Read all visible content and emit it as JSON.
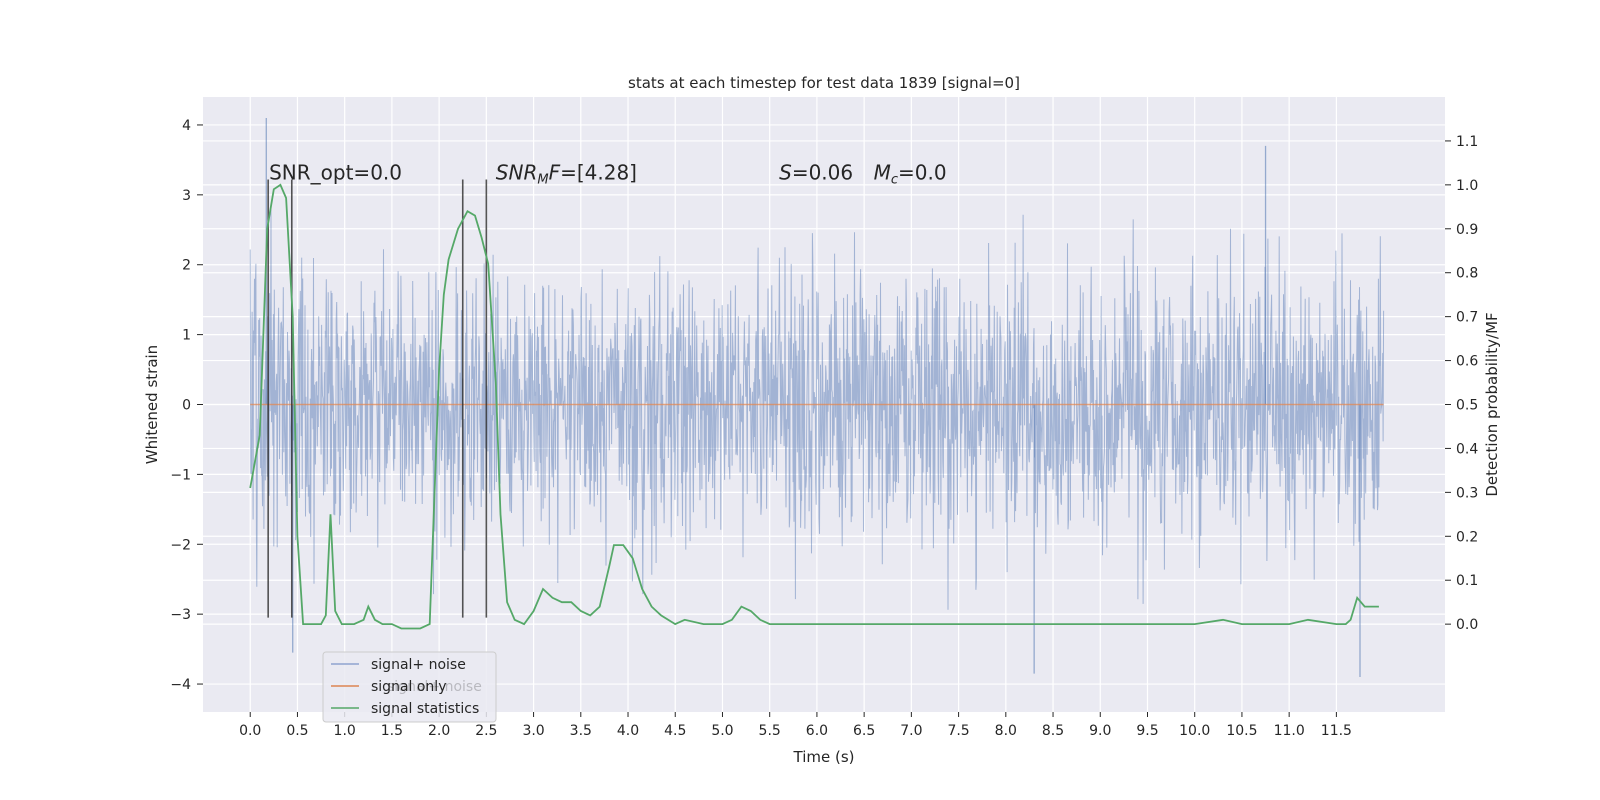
{
  "chart_data": {
    "type": "line",
    "title": "stats at each timestep for test data 1839 [signal=0]",
    "xlabel": "Time (s)",
    "ylabel": "Whitened strain",
    "ylabel_right": "Detection probability/MF",
    "xlim": [
      -0.5,
      12.65
    ],
    "ylim": [
      -4.4,
      4.4
    ],
    "ylim_right": [
      -0.2,
      1.2
    ],
    "x_ticks": [
      0.0,
      0.5,
      1.0,
      1.5,
      2.0,
      2.5,
      3.0,
      3.5,
      4.0,
      4.5,
      5.0,
      5.5,
      6.0,
      6.5,
      7.0,
      7.5,
      8.0,
      8.5,
      9.0,
      9.5,
      10.0,
      10.5,
      11.0,
      11.5
    ],
    "x_tick_labels": [
      "0.0",
      "0.5",
      "1.0",
      "1.5",
      "2.0",
      "2.5",
      "3.0",
      "3.5",
      "4.0",
      "4.5",
      "5.0",
      "5.5",
      "6.0",
      "6.5",
      "7.0",
      "7.5",
      "8.0",
      "8.5",
      "9.0",
      "9.5",
      "10.0",
      "10.5",
      "11.0",
      "11.5"
    ],
    "y_ticks": [
      -4,
      -3,
      -2,
      -1,
      0,
      1,
      2,
      3,
      4
    ],
    "y_tick_labels": [
      "−4",
      "−3",
      "−2",
      "−1",
      "0",
      "1",
      "2",
      "3",
      "4"
    ],
    "y_right_ticks": [
      0.0,
      0.1,
      0.2,
      0.3,
      0.4,
      0.5,
      0.6,
      0.7,
      0.8,
      0.9,
      1.0,
      1.1
    ],
    "y_right_tick_labels": [
      "0.0",
      "0.1",
      "0.2",
      "0.3",
      "0.4",
      "0.5",
      "0.6",
      "0.7",
      "0.8",
      "0.9",
      "1.0",
      "1.1"
    ],
    "grid": true,
    "legend_position": "lower-left",
    "colors": {
      "noise": "#4c72b0",
      "signal_only": "#dd8452",
      "statistics": "#55a868",
      "markers": "#2a2a2a",
      "plot_background": "#eaeaf2",
      "grid": "#ffffff"
    },
    "series": [
      {
        "name": "signal+ noise",
        "axis": "left",
        "x_range": [
          0.0,
          12.0
        ],
        "typical_range": [
          -1.6,
          1.5
        ],
        "notable_peaks": [
          {
            "x": 0.17,
            "y": 4.1
          },
          {
            "x": 0.45,
            "y": -3.55
          },
          {
            "x": 10.75,
            "y": 3.7
          },
          {
            "x": 8.3,
            "y": -3.85
          },
          {
            "x": 11.75,
            "y": -3.9
          }
        ]
      },
      {
        "name": "signal only",
        "axis": "left",
        "x": [
          0.0,
          12.0
        ],
        "y": [
          0.0,
          0.0
        ]
      },
      {
        "name": "signal statistics",
        "axis": "right",
        "x": [
          0.0,
          0.1,
          0.18,
          0.25,
          0.32,
          0.38,
          0.45,
          0.5,
          0.56,
          0.62,
          0.75,
          0.8,
          0.85,
          0.9,
          0.97,
          1.1,
          1.2,
          1.25,
          1.32,
          1.4,
          1.5,
          1.6,
          1.7,
          1.8,
          1.9,
          2.0,
          2.05,
          2.1,
          2.2,
          2.3,
          2.38,
          2.45,
          2.52,
          2.6,
          2.65,
          2.72,
          2.8,
          2.9,
          3.0,
          3.1,
          3.2,
          3.3,
          3.4,
          3.5,
          3.6,
          3.7,
          3.8,
          3.85,
          3.95,
          4.05,
          4.15,
          4.25,
          4.35,
          4.5,
          4.6,
          4.8,
          5.0,
          5.1,
          5.2,
          5.3,
          5.4,
          5.5,
          6.0,
          6.3,
          6.5,
          7.0,
          8.0,
          9.0,
          10.0,
          10.3,
          10.5,
          11.0,
          11.2,
          11.5,
          11.6,
          11.65,
          11.72,
          11.8,
          11.9,
          11.95
        ],
        "y": [
          0.31,
          0.43,
          0.9,
          0.99,
          1.0,
          0.97,
          0.7,
          0.2,
          0.0,
          0.0,
          0.0,
          0.02,
          0.25,
          0.03,
          0.0,
          0.0,
          0.01,
          0.04,
          0.01,
          0.0,
          0.0,
          -0.01,
          -0.01,
          -0.01,
          0.0,
          0.58,
          0.75,
          0.83,
          0.9,
          0.94,
          0.93,
          0.88,
          0.82,
          0.55,
          0.25,
          0.05,
          0.01,
          0.0,
          0.03,
          0.08,
          0.06,
          0.05,
          0.05,
          0.03,
          0.02,
          0.04,
          0.13,
          0.18,
          0.18,
          0.15,
          0.08,
          0.04,
          0.02,
          0.0,
          0.01,
          0.0,
          0.0,
          0.01,
          0.04,
          0.03,
          0.01,
          0.0,
          0.0,
          0.0,
          0.0,
          0.0,
          0.0,
          0.0,
          0.0,
          0.01,
          0.0,
          0.0,
          0.01,
          0.0,
          0.0,
          0.01,
          0.06,
          0.04,
          0.04,
          0.04
        ]
      }
    ],
    "vertical_markers_x": [
      0.19,
      0.44,
      2.25,
      2.5
    ],
    "vertical_markers_span": [
      -3.05,
      3.22
    ],
    "annotations": [
      {
        "text": "SNR_opt=0.0",
        "x": 0.2,
        "y": 3.22
      },
      {
        "text": "SNR_MF=[4.28]",
        "x": 2.6,
        "y": 3.22
      },
      {
        "text": "S=0.06",
        "x": 5.6,
        "y": 3.22
      },
      {
        "text": "M_c=0.0",
        "x": 6.6,
        "y": 3.22
      }
    ]
  },
  "legend": {
    "items": [
      {
        "label": "signal+ noise",
        "color": "#8fa3cf"
      },
      {
        "label": "signal only",
        "color": "#dd8452"
      },
      {
        "label": "signal statistics",
        "color": "#55a868"
      }
    ],
    "ghost_label": "signal+ noise"
  },
  "annotations_text": {
    "snr_opt": "SNR_opt=0.0",
    "snr_mf_base": "SNR",
    "snr_mf_sub": "M",
    "snr_mf_tail": "F",
    "snr_mf_value": "=[4.28]",
    "s_base": "S",
    "s_value": "=0.06",
    "mc_base": "M",
    "mc_sub": "c",
    "mc_value": "=0.0"
  }
}
